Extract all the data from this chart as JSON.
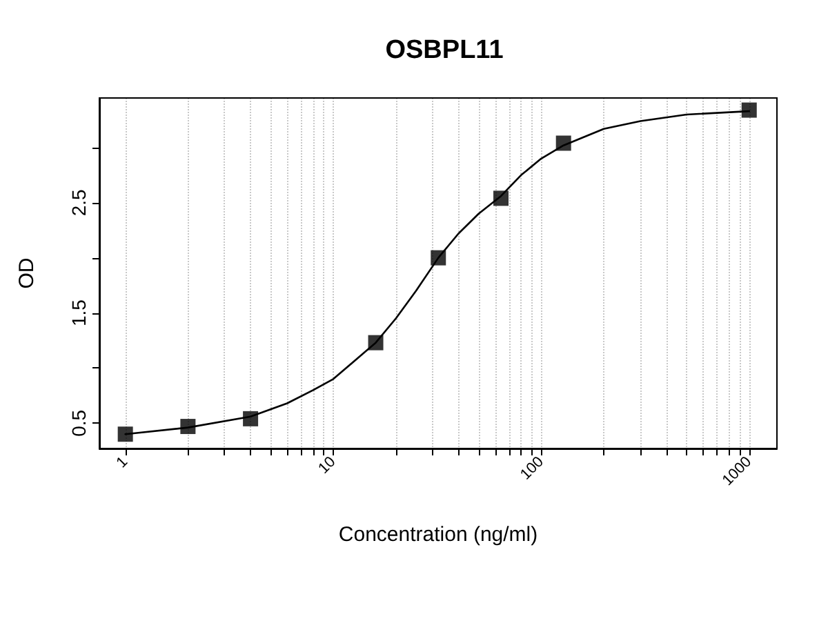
{
  "chart_data": {
    "type": "scatter",
    "title": "OSBPL11",
    "xlabel": "Concentration (ng/ml)",
    "ylabel": "OD",
    "log": "x",
    "grid": "x",
    "xlim": [
      0.75,
      1360
    ],
    "ylim": [
      0.27,
      3.45
    ],
    "xticks": [
      1,
      {
        "value": 2,
        "label": null
      },
      {
        "value": 3,
        "label": null
      },
      {
        "value": 4,
        "label": null
      },
      {
        "value": 5,
        "label": null
      },
      {
        "value": 6,
        "label": null
      },
      {
        "value": 7,
        "label": null
      },
      {
        "value": 8,
        "label": null
      },
      {
        "value": 9,
        "label": null
      },
      10,
      {
        "value": 20,
        "label": null
      },
      {
        "value": 30,
        "label": null
      },
      {
        "value": 40,
        "label": null
      },
      {
        "value": 50,
        "label": null
      },
      {
        "value": 60,
        "label": null
      },
      {
        "value": 70,
        "label": null
      },
      {
        "value": 80,
        "label": null
      },
      {
        "value": 90,
        "label": null
      },
      100,
      {
        "value": 200,
        "label": null
      },
      {
        "value": 300,
        "label": null
      },
      {
        "value": 400,
        "label": null
      },
      {
        "value": 500,
        "label": null
      },
      {
        "value": 600,
        "label": null
      },
      {
        "value": 700,
        "label": null
      },
      {
        "value": 800,
        "label": null
      },
      {
        "value": 900,
        "label": null
      },
      1000
    ],
    "yticks": [
      0.5,
      {
        "value": 1,
        "label": null
      },
      1.5,
      {
        "value": 2,
        "label": null
      },
      2.5,
      {
        "value": 3,
        "label": null
      }
    ],
    "series": [
      {
        "marker": "square",
        "color": "#000000",
        "x": [
          1,
          2,
          4,
          16,
          32,
          64,
          128,
          1000
        ],
        "values": [
          0.4,
          0.47,
          0.54,
          1.23,
          2.0,
          2.54,
          3.04,
          3.34
        ]
      },
      {
        "type": "line",
        "marker": "none",
        "line_style": "solid",
        "color": "#000000",
        "x": [
          1,
          2,
          4,
          6,
          8,
          10,
          16,
          20,
          25,
          32,
          40,
          50,
          64,
          80,
          100,
          128,
          200,
          300,
          500,
          1000
        ],
        "values": [
          0.4,
          0.46,
          0.56,
          0.68,
          0.8,
          0.9,
          1.23,
          1.45,
          1.7,
          2.0,
          2.22,
          2.4,
          2.56,
          2.75,
          2.9,
          3.02,
          3.17,
          3.24,
          3.3,
          3.33
        ]
      }
    ]
  }
}
